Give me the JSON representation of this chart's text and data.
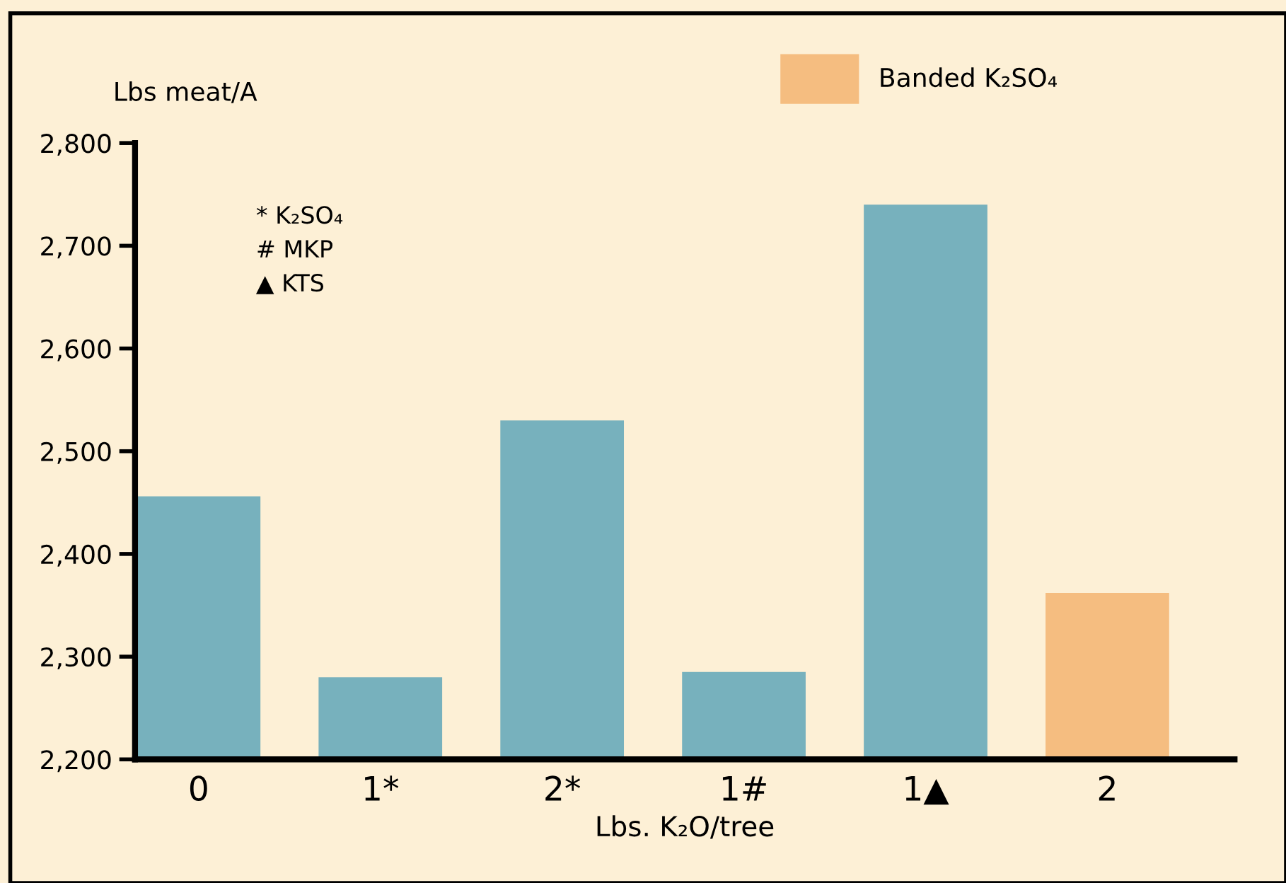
{
  "chart_data": {
    "type": "bar",
    "categories": [
      "0",
      "1*",
      "2*",
      "1#",
      "1▲",
      "2"
    ],
    "series": [
      {
        "color": "#77b1bd",
        "values": [
          2456,
          2280,
          2530,
          2285,
          2740,
          null
        ]
      },
      {
        "name": "Banded K₂SO₄",
        "color": "#f5bd80",
        "values": [
          null,
          null,
          null,
          null,
          null,
          2362
        ]
      }
    ],
    "ylabel": "Lbs meat/A",
    "xlabel": "Lbs. K₂O/tree",
    "ylim": [
      2200,
      2800
    ],
    "yticks": [
      {
        "value": 2200,
        "label": "2,200"
      },
      {
        "value": 2300,
        "label": "2,300"
      },
      {
        "value": 2400,
        "label": "2,400"
      },
      {
        "value": 2500,
        "label": "2,500"
      },
      {
        "value": 2600,
        "label": "2,600"
      },
      {
        "value": 2700,
        "label": "2,700"
      },
      {
        "value": 2800,
        "label": "2,800"
      }
    ],
    "annotations": [
      "* K₂SO₄",
      "# MKP",
      "▲ KTS"
    ],
    "legend": "top right",
    "grid": false
  }
}
